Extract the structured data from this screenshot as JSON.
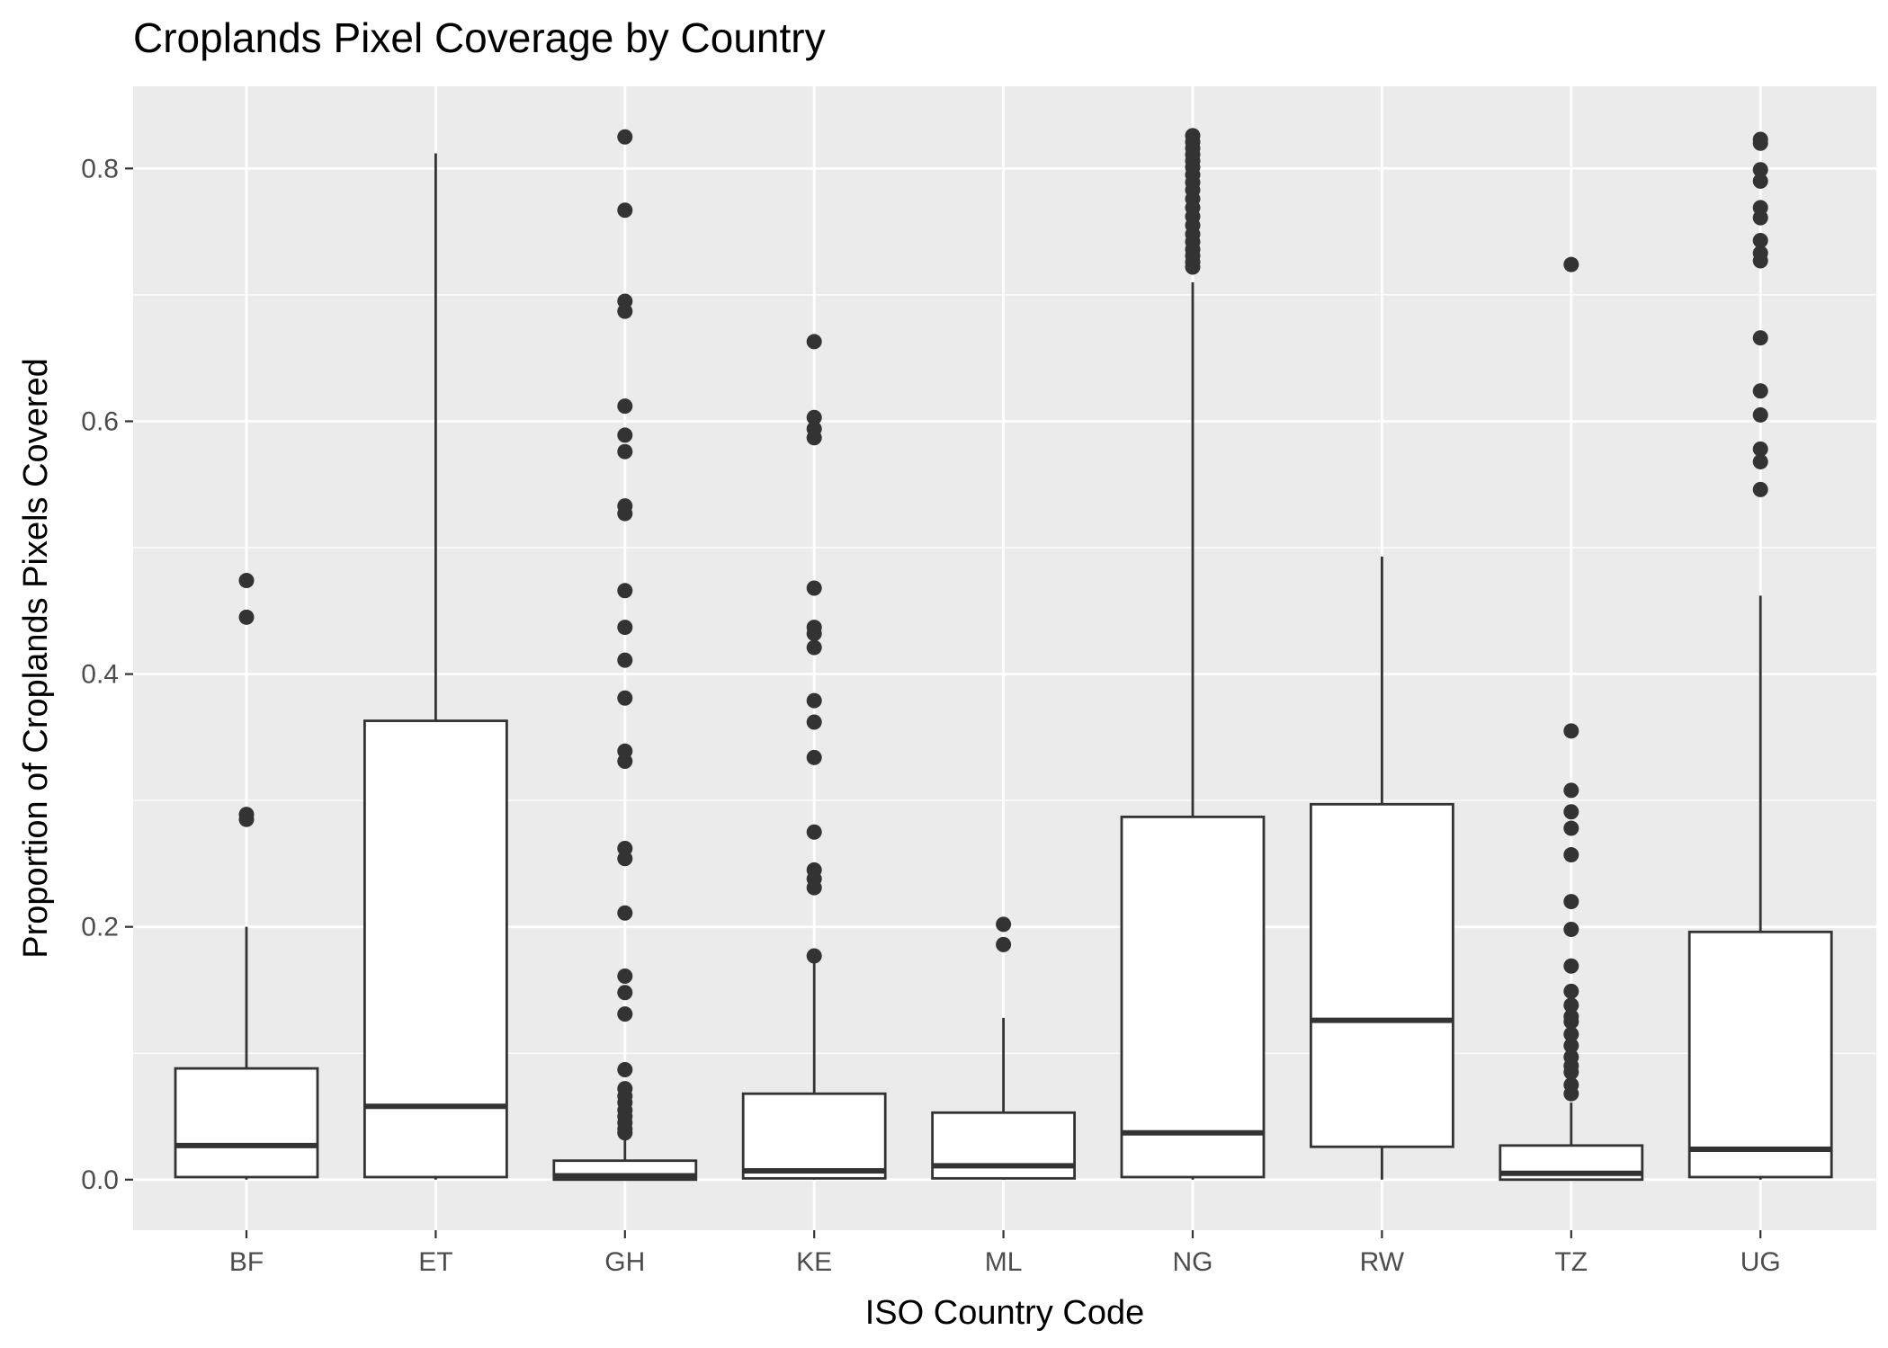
{
  "chart_data": {
    "type": "boxplot",
    "title": "Croplands Pixel Coverage by Country",
    "xlabel": "ISO Country Code",
    "ylabel": "Proportion of Croplands Pixels Covered",
    "ylim": [
      -0.04,
      0.865
    ],
    "yticks": [
      0.0,
      0.2,
      0.4,
      0.6,
      0.8
    ],
    "ytick_labels": [
      "0.0",
      "0.2",
      "0.4",
      "0.6",
      "0.8"
    ],
    "grid": true,
    "panel_color": "#ebebeb",
    "categories": [
      "BF",
      "ET",
      "GH",
      "KE",
      "ML",
      "NG",
      "RW",
      "TZ",
      "UG"
    ],
    "boxes": [
      {
        "category": "BF",
        "whisker_low": 0.0,
        "q1": 0.002,
        "median": 0.027,
        "q3": 0.088,
        "whisker_high": 0.2,
        "outliers": [
          0.474,
          0.445,
          0.289,
          0.285
        ]
      },
      {
        "category": "ET",
        "whisker_low": 0.0,
        "q1": 0.002,
        "median": 0.058,
        "q3": 0.363,
        "whisker_high": 0.812,
        "outliers": []
      },
      {
        "category": "GH",
        "whisker_low": 0.0,
        "q1": 0.0,
        "median": 0.003,
        "q3": 0.015,
        "whisker_high": 0.037,
        "outliers": [
          0.825,
          0.767,
          0.695,
          0.687,
          0.612,
          0.589,
          0.576,
          0.533,
          0.527,
          0.466,
          0.437,
          0.411,
          0.381,
          0.339,
          0.331,
          0.262,
          0.254,
          0.211,
          0.161,
          0.148,
          0.131,
          0.087,
          0.072,
          0.066,
          0.061,
          0.055,
          0.05,
          0.045,
          0.04,
          0.037
        ]
      },
      {
        "category": "KE",
        "whisker_low": 0.0,
        "q1": 0.001,
        "median": 0.007,
        "q3": 0.068,
        "whisker_high": 0.171,
        "outliers": [
          0.663,
          0.603,
          0.594,
          0.587,
          0.468,
          0.437,
          0.432,
          0.421,
          0.379,
          0.362,
          0.334,
          0.275,
          0.245,
          0.238,
          0.231,
          0.177
        ]
      },
      {
        "category": "ML",
        "whisker_low": 0.0,
        "q1": 0.001,
        "median": 0.011,
        "q3": 0.053,
        "whisker_high": 0.128,
        "outliers": [
          0.202,
          0.186
        ]
      },
      {
        "category": "NG",
        "whisker_low": 0.0,
        "q1": 0.002,
        "median": 0.037,
        "q3": 0.287,
        "whisker_high": 0.71,
        "outliers": [
          0.826,
          0.821,
          0.816,
          0.811,
          0.806,
          0.801,
          0.795,
          0.789,
          0.783,
          0.776,
          0.769,
          0.762,
          0.755,
          0.748,
          0.742,
          0.736,
          0.731,
          0.726,
          0.722
        ]
      },
      {
        "category": "RW",
        "whisker_low": 0.0,
        "q1": 0.026,
        "median": 0.126,
        "q3": 0.297,
        "whisker_high": 0.493,
        "outliers": []
      },
      {
        "category": "TZ",
        "whisker_low": 0.0,
        "q1": 0.0,
        "median": 0.005,
        "q3": 0.027,
        "whisker_high": 0.061,
        "outliers": [
          0.724,
          0.355,
          0.308,
          0.291,
          0.278,
          0.257,
          0.22,
          0.198,
          0.169,
          0.149,
          0.138,
          0.129,
          0.125,
          0.115,
          0.106,
          0.097,
          0.09,
          0.085,
          0.075,
          0.068
        ]
      },
      {
        "category": "UG",
        "whisker_low": 0.0,
        "q1": 0.002,
        "median": 0.024,
        "q3": 0.196,
        "whisker_high": 0.462,
        "outliers": [
          0.823,
          0.82,
          0.799,
          0.79,
          0.769,
          0.761,
          0.743,
          0.733,
          0.727,
          0.666,
          0.624,
          0.605,
          0.578,
          0.568,
          0.546
        ]
      }
    ]
  }
}
